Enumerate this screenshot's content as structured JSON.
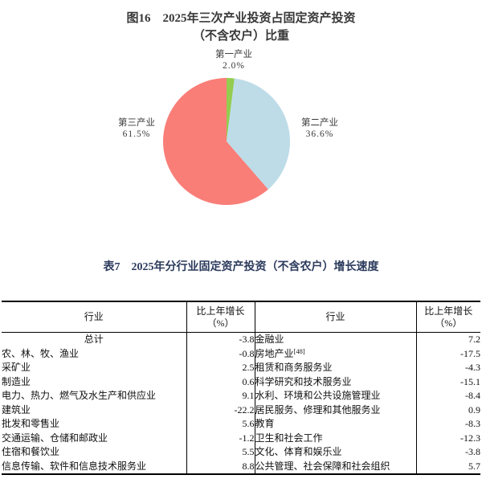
{
  "figure": {
    "title_line1": "图16　2025年三次产业投资占固定资产投资",
    "title_line2": "（不含农户）比重",
    "labels": [
      {
        "name": "第一产业",
        "pct": "2.0%"
      },
      {
        "name": "第二产业",
        "pct": "36.6%"
      },
      {
        "name": "第三产业",
        "pct": "61.5%"
      }
    ]
  },
  "chart_data": [
    {
      "type": "pie",
      "title": "图16 2025年三次产业投资占固定资产投资（不含农户）比重",
      "labels": [
        "第一产业",
        "第二产业",
        "第三产业"
      ],
      "values": [
        2.0,
        36.6,
        61.5
      ],
      "unit": "%",
      "colors": [
        "#93cc4f",
        "#bddce8",
        "#f97e78"
      ],
      "start_angle": "north",
      "direction": "clockwise",
      "legend": "none"
    },
    {
      "type": "table",
      "title": "表7 2025年分行业固定资产投资（不含农户）增长速度",
      "columns": [
        "行业",
        "比上年增长（%）"
      ],
      "rows": [
        [
          "总计",
          -3.8
        ],
        [
          "农、林、牧、渔业",
          -0.8
        ],
        [
          "采矿业",
          2.5
        ],
        [
          "制造业",
          0.6
        ],
        [
          "电力、热力、燃气及水生产和供应业",
          9.1
        ],
        [
          "建筑业",
          -22.2
        ],
        [
          "批发和零售业",
          5.6
        ],
        [
          "交通运输、仓储和邮政业",
          -1.2
        ],
        [
          "住宿和餐饮业",
          5.5
        ],
        [
          "信息传输、软件和信息技术服务业",
          8.8
        ],
        [
          "金融业",
          7.2
        ],
        [
          "房地产业[48]",
          -17.5
        ],
        [
          "租赁和商务服务业",
          -4.3
        ],
        [
          "科学研究和技术服务业",
          -15.1
        ],
        [
          "水利、环境和公共设施管理业",
          -8.4
        ],
        [
          "居民服务、修理和其他服务业",
          0.9
        ],
        [
          "教育",
          -8.3
        ],
        [
          "卫生和社会工作",
          -12.3
        ],
        [
          "文化、体育和娱乐业",
          -3.8
        ],
        [
          "公共管理、社会保障和社会组织",
          5.7
        ]
      ]
    }
  ],
  "table": {
    "title": "表7　2025年分行业固定资产投资（不含农户）增长速度",
    "header": {
      "industry": "行业",
      "growth1": "比上年增长",
      "growth2": "（%）"
    },
    "rows": [
      {
        "li": "总计",
        "lv": "-3.8",
        "ri": "金融业",
        "rv": "7.2"
      },
      {
        "li": "农、林、牧、渔业",
        "lv": "-0.8",
        "ri": "房地产业",
        "ri_sup": "[48]",
        "rv": "-17.5"
      },
      {
        "li": "采矿业",
        "lv": "2.5",
        "ri": "租赁和商务服务业",
        "rv": "-4.3"
      },
      {
        "li": "制造业",
        "lv": "0.6",
        "ri": "科学研究和技术服务业",
        "rv": "-15.1"
      },
      {
        "li": "电力、热力、燃气及水生产和供应业",
        "lv": "9.1",
        "ri": "水利、环境和公共设施管理业",
        "rv": "-8.4"
      },
      {
        "li": "建筑业",
        "lv": "-22.2",
        "ri": "居民服务、修理和其他服务业",
        "rv": "0.9"
      },
      {
        "li": "批发和零售业",
        "lv": "5.6",
        "ri": "教育",
        "rv": "-8.3"
      },
      {
        "li": "交通运输、仓储和邮政业",
        "lv": "-1.2",
        "ri": "卫生和社会工作",
        "rv": "-12.3"
      },
      {
        "li": "住宿和餐饮业",
        "lv": "5.5",
        "ri": "文化、体育和娱乐业",
        "rv": "-3.8"
      },
      {
        "li": "信息传输、软件和信息技术服务业",
        "lv": "8.8",
        "ri": "公共管理、社会保障和社会组织",
        "rv": "5.7"
      }
    ]
  }
}
